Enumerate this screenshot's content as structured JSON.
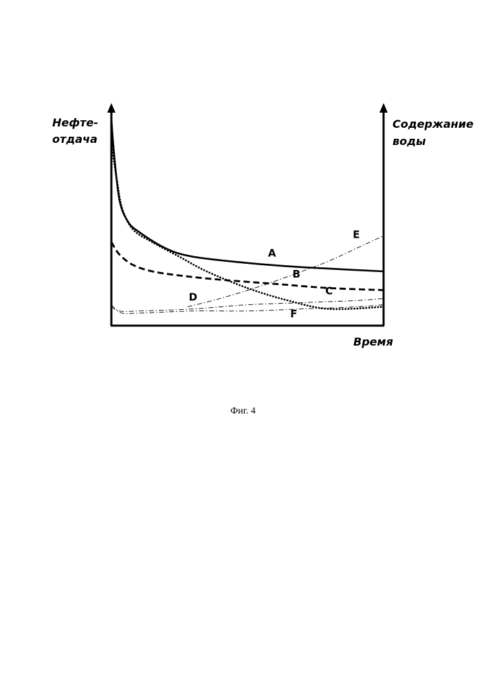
{
  "figure": {
    "caption": "Фиг. 4"
  },
  "chart_data": {
    "type": "line",
    "ylabel_left": "Нефте-\nотдача",
    "ylabel_right": "Содержание\nводы",
    "xlabel": "Время",
    "ticks": "none",
    "grid": false,
    "legend": "none",
    "series": [
      {
        "name": "A",
        "axis": "left",
        "style": "solid",
        "points": [
          [
            0,
            0.99
          ],
          [
            0.01,
            0.82
          ],
          [
            0.03,
            0.6
          ],
          [
            0.06,
            0.5
          ],
          [
            0.1,
            0.45
          ],
          [
            0.2,
            0.37
          ],
          [
            0.3,
            0.33
          ],
          [
            0.5,
            0.3
          ],
          [
            0.7,
            0.28
          ],
          [
            1.0,
            0.26
          ]
        ]
      },
      {
        "name": "B",
        "axis": "left",
        "style": "dashed",
        "points": [
          [
            0,
            0.4
          ],
          [
            0.03,
            0.34
          ],
          [
            0.08,
            0.29
          ],
          [
            0.15,
            0.26
          ],
          [
            0.25,
            0.24
          ],
          [
            0.4,
            0.22
          ],
          [
            0.6,
            0.2
          ],
          [
            0.8,
            0.18
          ],
          [
            1.0,
            0.17
          ]
        ]
      },
      {
        "name": "C",
        "axis": "left",
        "style": "dotted",
        "points": [
          [
            0,
            0.87
          ],
          [
            0.02,
            0.7
          ],
          [
            0.04,
            0.56
          ],
          [
            0.08,
            0.46
          ],
          [
            0.15,
            0.4
          ],
          [
            0.25,
            0.33
          ],
          [
            0.35,
            0.26
          ],
          [
            0.5,
            0.18
          ],
          [
            0.65,
            0.12
          ],
          [
            0.8,
            0.08
          ],
          [
            1.0,
            0.09
          ]
        ]
      },
      {
        "name": "D",
        "axis": "right",
        "style": "dash-dot",
        "points": [
          [
            0,
            0.1
          ],
          [
            0.03,
            0.07
          ],
          [
            0.1,
            0.07
          ],
          [
            0.3,
            0.08
          ],
          [
            0.5,
            0.1
          ],
          [
            0.7,
            0.11
          ],
          [
            0.9,
            0.12
          ],
          [
            1.0,
            0.13
          ]
        ]
      },
      {
        "name": "E",
        "axis": "right",
        "style": "dash-dot",
        "points": [
          [
            0.28,
            0.09
          ],
          [
            0.4,
            0.13
          ],
          [
            0.55,
            0.19
          ],
          [
            0.7,
            0.26
          ],
          [
            0.8,
            0.31
          ],
          [
            0.9,
            0.37
          ],
          [
            0.95,
            0.4
          ],
          [
            1.0,
            0.43
          ]
        ]
      },
      {
        "name": "F",
        "axis": "right",
        "style": "dash-dot",
        "points": [
          [
            0,
            0.09
          ],
          [
            0.04,
            0.06
          ],
          [
            0.1,
            0.06
          ],
          [
            0.3,
            0.07
          ],
          [
            0.5,
            0.07
          ],
          [
            0.7,
            0.08
          ],
          [
            0.9,
            0.09
          ],
          [
            1.0,
            0.1
          ]
        ]
      }
    ],
    "annotations": [
      {
        "text": "A",
        "x": 0.59,
        "y": 0.33
      },
      {
        "text": "B",
        "x": 0.68,
        "y": 0.23
      },
      {
        "text": "C",
        "x": 0.8,
        "y": 0.15
      },
      {
        "text": "D",
        "x": 0.3,
        "y": 0.12
      },
      {
        "text": "E",
        "x": 0.9,
        "y": 0.42
      },
      {
        "text": "F",
        "x": 0.67,
        "y": 0.04
      }
    ]
  }
}
